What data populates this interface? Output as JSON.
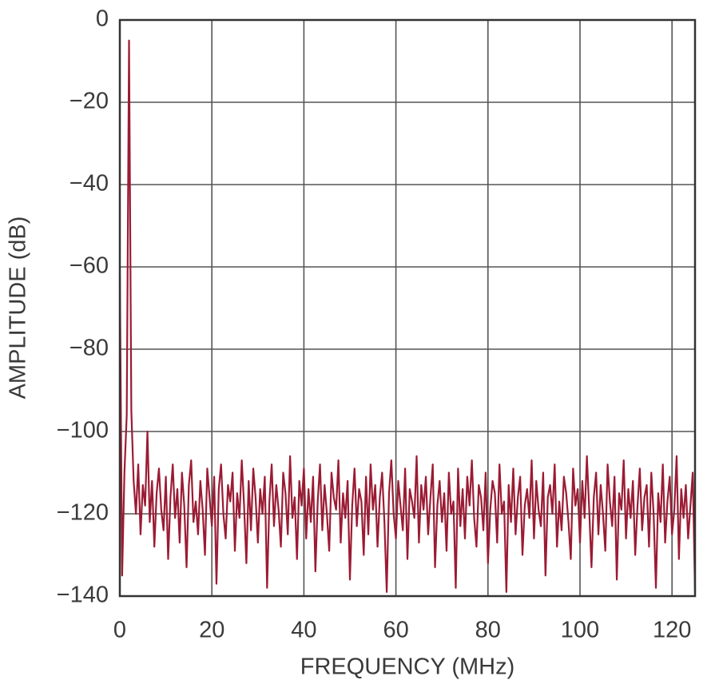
{
  "chart_data": {
    "type": "line",
    "x_label": "FREQUENCY (MHz)",
    "y_label": "AMPLITUDE (dB)",
    "xlim": [
      0,
      125
    ],
    "ylim": [
      -140,
      0
    ],
    "xticks": [
      0,
      20,
      40,
      60,
      80,
      100,
      120
    ],
    "yticks": [
      {
        "value": -140,
        "label": "−140"
      },
      {
        "value": -120,
        "label": "−120"
      },
      {
        "value": -100,
        "label": "−100"
      },
      {
        "value": -80,
        "label": "−80"
      },
      {
        "value": -60,
        "label": "−60"
      },
      {
        "value": -40,
        "label": "−40"
      },
      {
        "value": -20,
        "label": "−20"
      },
      0
    ],
    "grid": true,
    "x": [
      0,
      0.5,
      1,
      1.5,
      2,
      2.5,
      3,
      3.5,
      4,
      4.5,
      5,
      5.5,
      6,
      6.5,
      7,
      7.5,
      8,
      8.5,
      9,
      9.5,
      10,
      10.5,
      11,
      11.5,
      12,
      12.5,
      13,
      13.5,
      14,
      14.5,
      15,
      15.5,
      16,
      16.5,
      17,
      17.5,
      18,
      18.5,
      19,
      19.5,
      20,
      20.5,
      21,
      21.5,
      22,
      22.5,
      23,
      23.5,
      24,
      24.5,
      25,
      25.5,
      26,
      26.5,
      27,
      27.5,
      28,
      28.5,
      29,
      29.5,
      30,
      30.5,
      31,
      31.5,
      32,
      32.5,
      33,
      33.5,
      34,
      34.5,
      35,
      35.5,
      36,
      36.5,
      37,
      37.5,
      38,
      38.5,
      39,
      39.5,
      40,
      40.5,
      41,
      41.5,
      42,
      42.5,
      43,
      43.5,
      44,
      44.5,
      45,
      45.5,
      46,
      46.5,
      47,
      47.5,
      48,
      48.5,
      49,
      49.5,
      50,
      50.5,
      51,
      51.5,
      52,
      52.5,
      53,
      53.5,
      54,
      54.5,
      55,
      55.5,
      56,
      56.5,
      57,
      57.5,
      58,
      58.5,
      59,
      59.5,
      60,
      60.5,
      61,
      61.5,
      62,
      62.5,
      63,
      63.5,
      64,
      64.5,
      65,
      65.5,
      66,
      66.5,
      67,
      67.5,
      68,
      68.5,
      69,
      69.5,
      70,
      70.5,
      71,
      71.5,
      72,
      72.5,
      73,
      73.5,
      74,
      74.5,
      75,
      75.5,
      76,
      76.5,
      77,
      77.5,
      78,
      78.5,
      79,
      79.5,
      80,
      80.5,
      81,
      81.5,
      82,
      82.5,
      83,
      83.5,
      84,
      84.5,
      85,
      85.5,
      86,
      86.5,
      87,
      87.5,
      88,
      88.5,
      89,
      89.5,
      90,
      90.5,
      91,
      91.5,
      92,
      92.5,
      93,
      93.5,
      94,
      94.5,
      95,
      95.5,
      96,
      96.5,
      97,
      97.5,
      98,
      98.5,
      99,
      99.5,
      100,
      100.5,
      101,
      101.5,
      102,
      102.5,
      103,
      103.5,
      104,
      104.5,
      105,
      105.5,
      106,
      106.5,
      107,
      107.5,
      108,
      108.5,
      109,
      109.5,
      110,
      110.5,
      111,
      111.5,
      112,
      112.5,
      113,
      113.5,
      114,
      114.5,
      115,
      115.5,
      116,
      116.5,
      117,
      117.5,
      118,
      118.5,
      119,
      119.5,
      120,
      120.5,
      121,
      121.5,
      122,
      122.5,
      123,
      123.5,
      124,
      124.5,
      125
    ],
    "series": [
      {
        "color": "#9b1b33",
        "values": [
          -62,
          -135,
          -110,
          -96,
          -5,
          -95,
          -112,
          -120,
          -108,
          -125,
          -113,
          -118,
          -100,
          -122,
          -112,
          -128,
          -115,
          -109,
          -119,
          -124,
          -111,
          -131,
          -116,
          -108,
          -121,
          -114,
          -127,
          -110,
          -118,
          -133,
          -113,
          -107,
          -122,
          -117,
          -125,
          -112,
          -119,
          -130,
          -109,
          -116,
          -123,
          -111,
          -137,
          -114,
          -108,
          -120,
          -126,
          -113,
          -117,
          -110,
          -129,
          -115,
          -121,
          -107,
          -118,
          -132,
          -112,
          -124,
          -109,
          -116,
          -127,
          -114,
          -120,
          -111,
          -138,
          -117,
          -108,
          -123,
          -113,
          -119,
          -128,
          -110,
          -115,
          -125,
          -106,
          -121,
          -116,
          -131,
          -112,
          -118,
          -109,
          -126,
          -114,
          -122,
          -111,
          -134,
          -117,
          -108,
          -124,
          -113,
          -120,
          -129,
          -110,
          -116,
          -119,
          -107,
          -127,
          -115,
          -121,
          -112,
          -136,
          -118,
          -109,
          -123,
          -114,
          -117,
          -130,
          -111,
          -125,
          -108,
          -119,
          -113,
          -128,
          -116,
          -110,
          -122,
          -139,
          -115,
          -107,
          -120,
          -126,
          -112,
          -118,
          -124,
          -109,
          -131,
          -114,
          -117,
          -121,
          -106,
          -127,
          -113,
          -119,
          -111,
          -125,
          -116,
          -108,
          -133,
          -118,
          -112,
          -122,
          -115,
          -129,
          -110,
          -120,
          -117,
          -138,
          -109,
          -123,
          -114,
          -126,
          -111,
          -118,
          -107,
          -121,
          -128,
          -113,
          -116,
          -124,
          -110,
          -132,
          -119,
          -112,
          -115,
          -127,
          -108,
          -120,
          -117,
          -139,
          -113,
          -122,
          -109,
          -125,
          -116,
          -111,
          -130,
          -118,
          -114,
          -121,
          -107,
          -126,
          -112,
          -119,
          -123,
          -110,
          -135,
          -116,
          -113,
          -120,
          -108,
          -128,
          -117,
          -124,
          -111,
          -115,
          -122,
          -131,
          -109,
          -118,
          -114,
          -127,
          -112,
          -121,
          -106,
          -119,
          -133,
          -116,
          -110,
          -125,
          -113,
          -120,
          -129,
          -108,
          -117,
          -123,
          -111,
          -136,
          -115,
          -119,
          -107,
          -126,
          -114,
          -121,
          -112,
          -130,
          -118,
          -109,
          -124,
          -116,
          -113,
          -128,
          -110,
          -120,
          -138,
          -115,
          -122,
          -108,
          -127,
          -117,
          -111,
          -125,
          -119,
          -106,
          -131,
          -114,
          -121,
          -113,
          -126,
          -118,
          -110,
          -139
        ]
      }
    ]
  }
}
